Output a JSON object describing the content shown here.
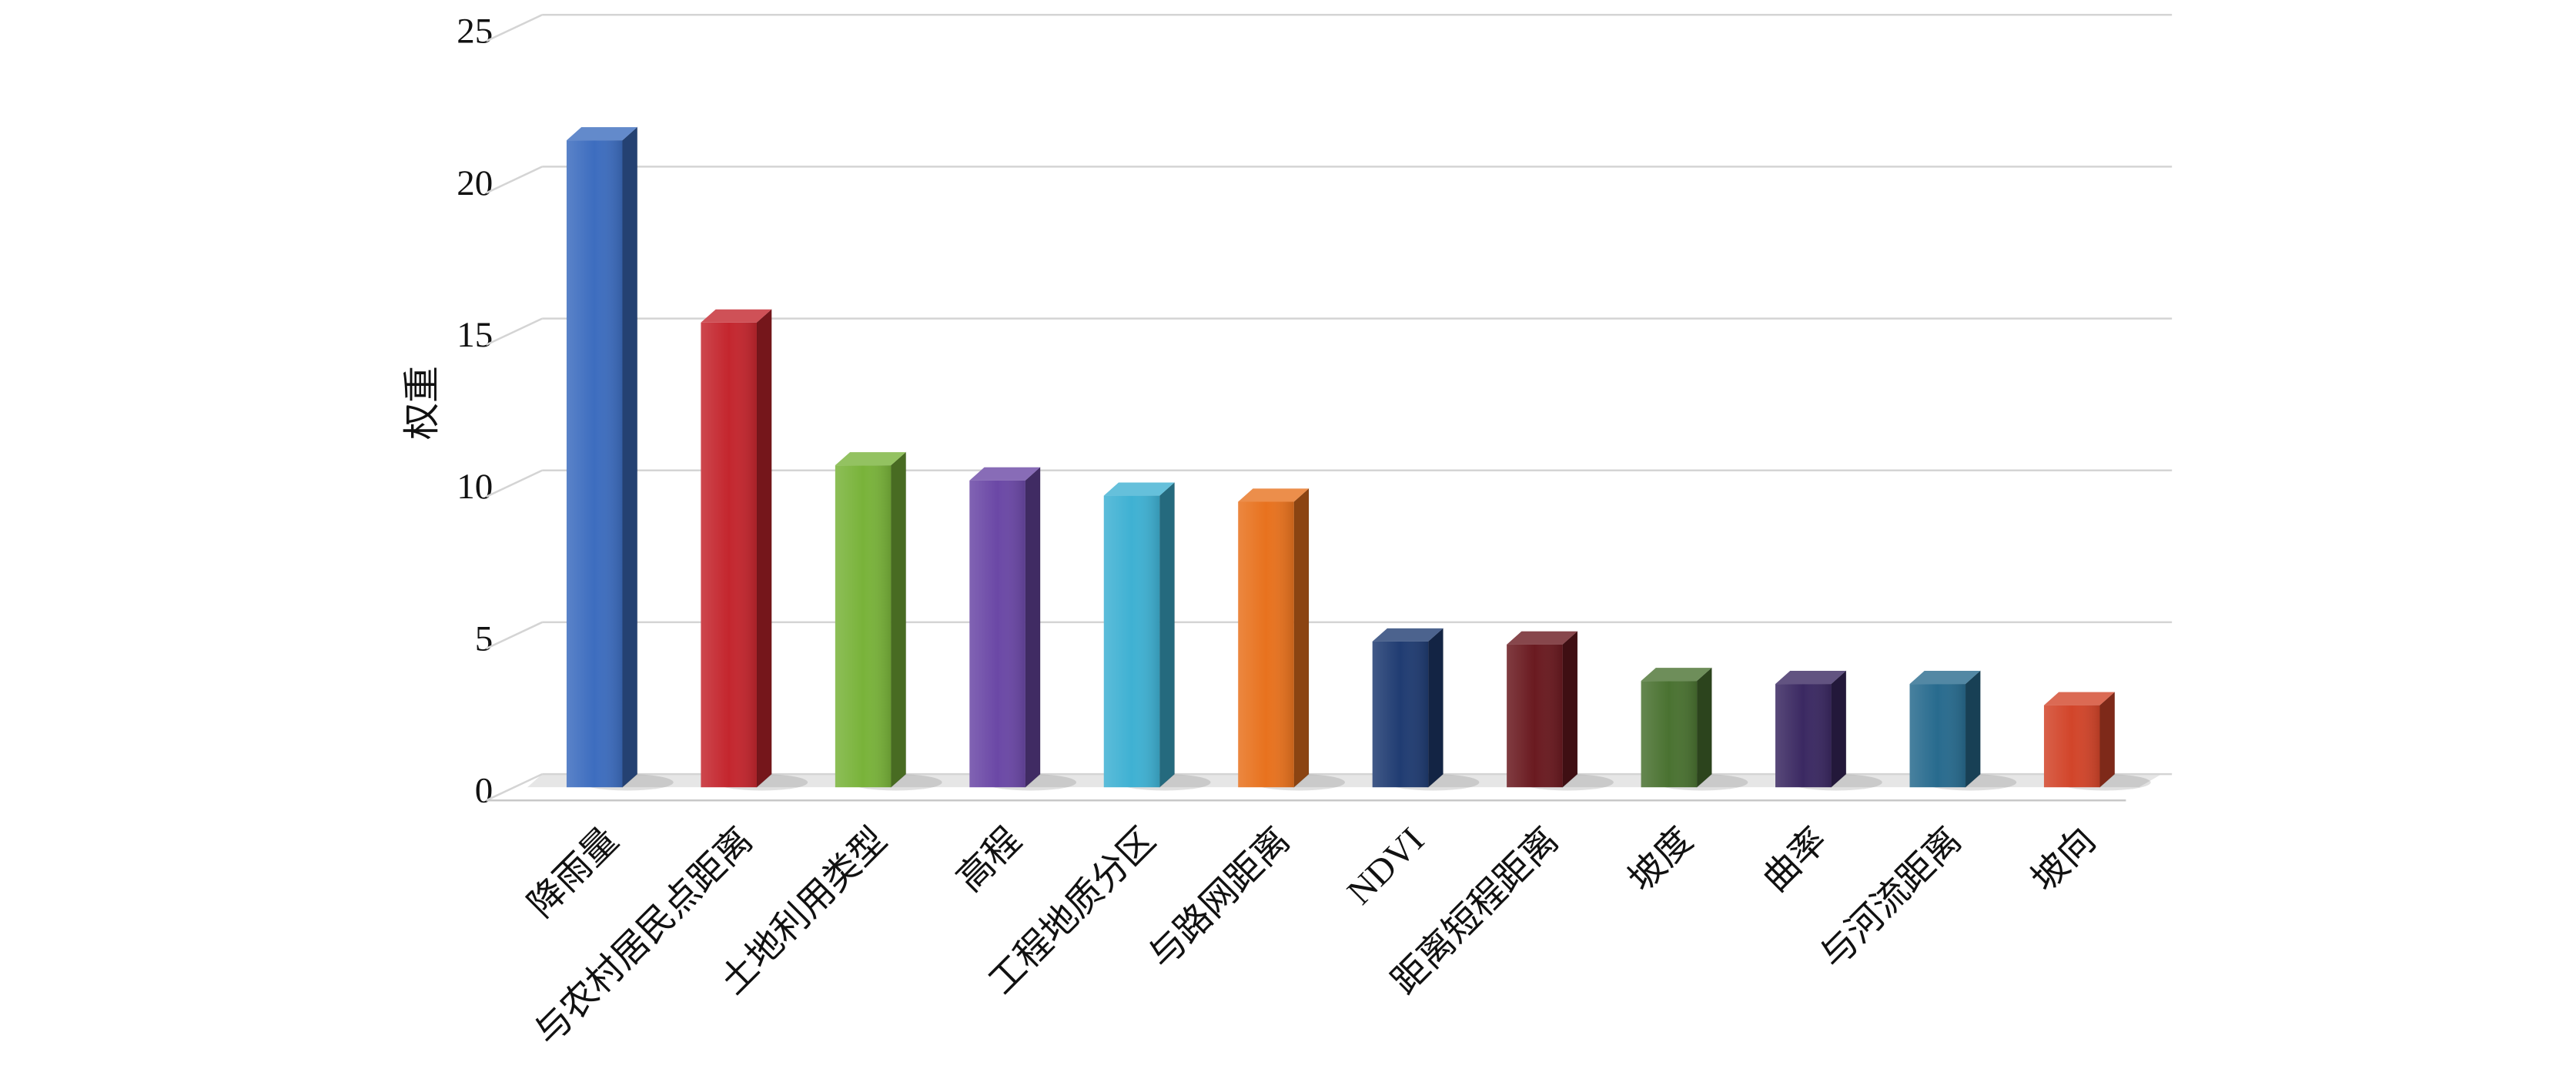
{
  "chart_data": {
    "type": "bar3d",
    "y_label": "权重",
    "categories": [
      "降雨量",
      "与农村居民点距离",
      "土地利用类型",
      "高程",
      "工程地质分区",
      "与路网距离",
      "NDVI",
      "距离短程距离",
      "坡度",
      "曲率",
      "与河流距离",
      "坡向"
    ],
    "values": [
      21.3,
      15.3,
      10.6,
      10.1,
      9.6,
      9.4,
      4.8,
      4.7,
      3.5,
      3.4,
      3.4,
      2.7
    ],
    "colors": [
      "#3d6dbf",
      "#c4262e",
      "#79b33a",
      "#6b48a6",
      "#3fb1d3",
      "#e8721e",
      "#203c72",
      "#6a1a20",
      "#4a7231",
      "#3b2962",
      "#286b8e",
      "#d2452a"
    ],
    "ylim": [
      0,
      25
    ],
    "yticks": [
      0,
      5,
      10,
      15,
      20,
      25
    ],
    "grid": true
  }
}
